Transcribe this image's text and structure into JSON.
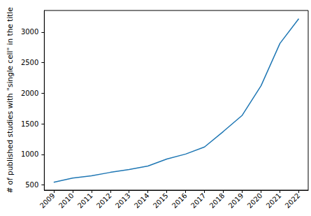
{
  "chart_data": {
    "type": "line",
    "y_label": "# of published studies with \"single cell\" in the title",
    "categories": [
      "2009",
      "2010",
      "2011",
      "2012",
      "2013",
      "2014",
      "2015",
      "2016",
      "2017",
      "2018",
      "2019",
      "2020",
      "2021",
      "2022"
    ],
    "values": [
      546,
      615,
      650,
      707,
      753,
      811,
      926,
      1007,
      1122,
      1376,
      1640,
      2124,
      2815,
      3219
    ],
    "color": "#1f77b4",
    "ylim": [
      417,
      3353
    ],
    "yticks": [
      500,
      1000,
      1500,
      2000,
      2500,
      3000
    ],
    "grid": false
  }
}
